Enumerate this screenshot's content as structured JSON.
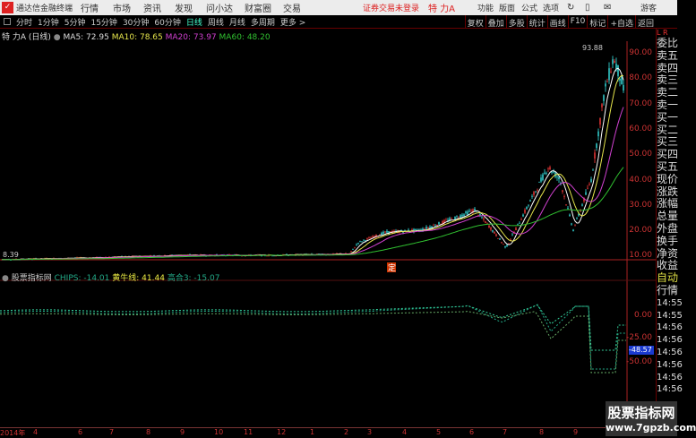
{
  "title": {
    "app": "通达信金融终端",
    "menu": [
      "行情",
      "市场",
      "资讯",
      "发现",
      "问小达",
      "财富圈",
      "交易"
    ],
    "status": "证券交易未登录",
    "stock": "特 力A",
    "right_menu": [
      "功能",
      "版面",
      "公式",
      "选项"
    ],
    "user": "游客"
  },
  "toolbar": {
    "periods": [
      "分时",
      "1分钟",
      "5分钟",
      "15分钟",
      "30分钟",
      "60分钟",
      "日线",
      "周线",
      "月线",
      "多周期",
      "更多 >"
    ],
    "active": "日线",
    "buttons": [
      "复权",
      "叠加",
      "多股",
      "统计",
      "画线",
      "F10",
      "标记",
      "+自选",
      "返回"
    ]
  },
  "info": {
    "name": "特 力A (日线)",
    "ma5": "MA5: 72.95",
    "ma10": "MA10: 78.65",
    "ma20": "MA20: 73.97",
    "ma60": "MA60: 48.20"
  },
  "chart": {
    "high_label": "93.88",
    "low_label": "8.39",
    "marker": "定",
    "price_axis": [
      "90.00",
      "80.00",
      "70.00",
      "60.00",
      "50.00",
      "40.00",
      "30.00",
      "20.00",
      "10.00"
    ],
    "colors": {
      "up": "#ff3b3b",
      "down": "#39e6e6",
      "ma5": "#ffffff",
      "ma10": "#e6e64c",
      "ma20": "#d040d0",
      "ma60": "#30c030"
    }
  },
  "indicator": {
    "name": "股票指标网",
    "chips": "CHIPS: -14.01",
    "hnx": "黄牛线: 41.44",
    "gh3": "高合3: -15.07",
    "axis": [
      "0.00",
      "-25.00",
      "-50.00"
    ],
    "current": "-48.57"
  },
  "side": {
    "items": [
      "委比",
      "卖五",
      "卖四",
      "卖三",
      "卖二",
      "卖一",
      "买一",
      "买二",
      "买三",
      "买四",
      "买五",
      "现价",
      "涨跌",
      "涨幅",
      "总量",
      "外盘",
      "换手",
      "净资",
      "收益"
    ],
    "bottom": [
      "自动",
      "行情",
      "14:55",
      "14:55",
      "14:56",
      "14:56",
      "14:56",
      "14:56",
      "14:56",
      "14:56"
    ]
  },
  "xaxis": [
    "2014年",
    "4",
    "6",
    "7",
    "8",
    "9",
    "10",
    "11",
    "12",
    "1",
    "2",
    "3",
    "4",
    "5",
    "6",
    "7",
    "8",
    "9"
  ],
  "watermark": {
    "line1": "股票指标网",
    "line2": "www.7gpzb.com"
  }
}
